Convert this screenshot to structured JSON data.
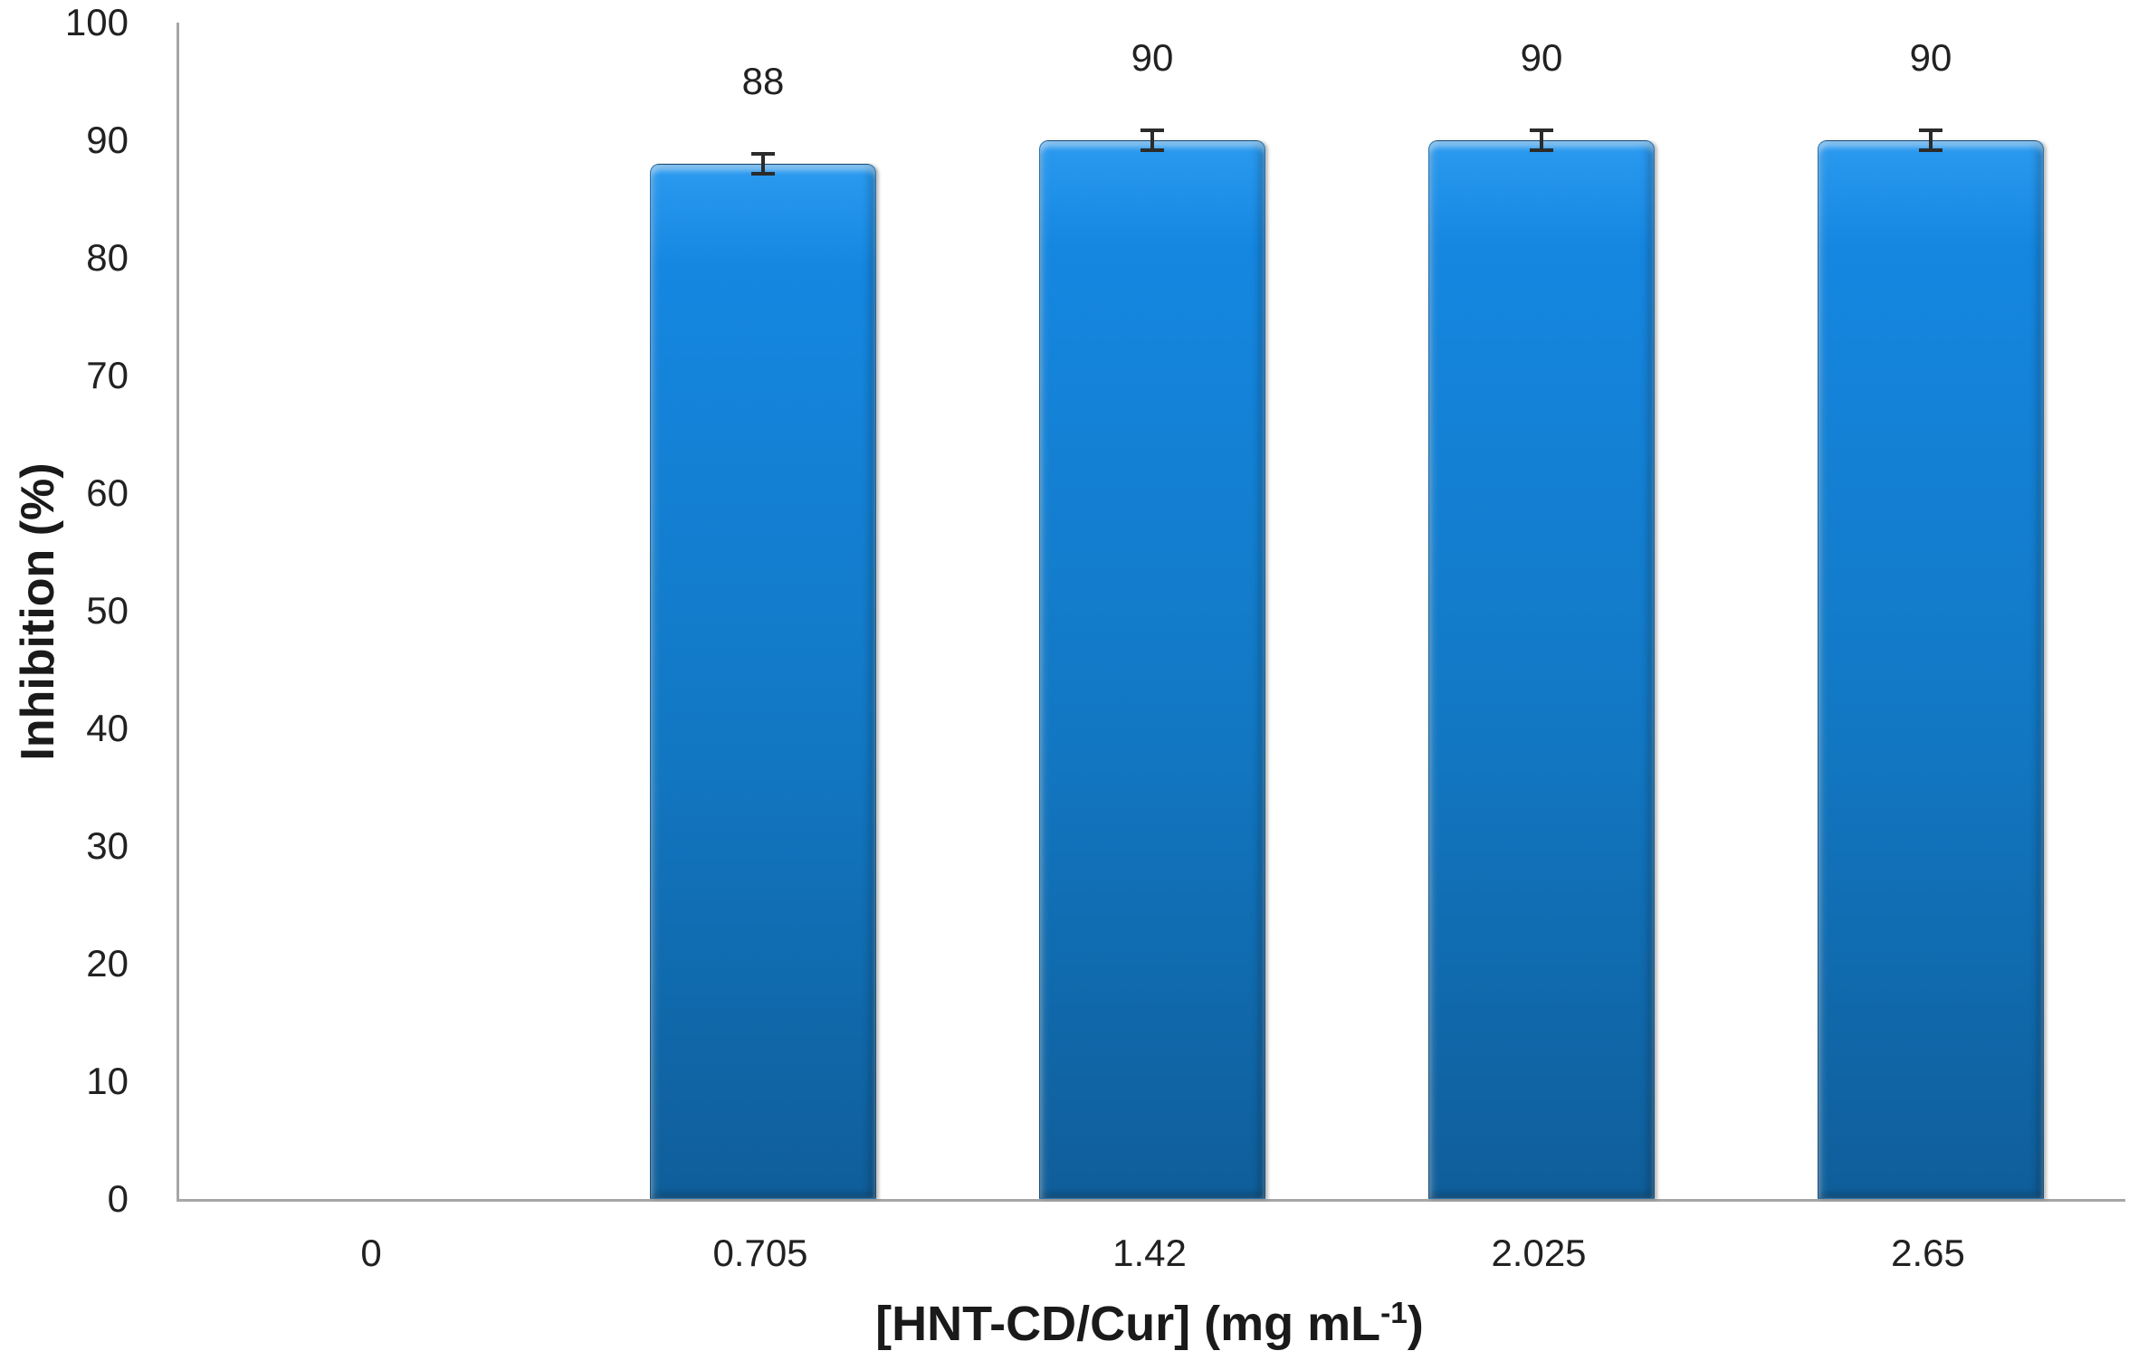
{
  "figure": {
    "background": "#ffffff",
    "axis_line_color": "#a6a6a6",
    "text_color": "#212121",
    "bar_color_top": "#1587e1",
    "bar_color_bottom": "#0f5e9a",
    "error_bar_color": "#2b2b2b"
  },
  "chart_data": {
    "type": "bar",
    "title": "",
    "xlabel": "[HNT-CD/Cur] (mg mL⁻¹)",
    "xlabel_parts": {
      "main": "[HNT-CD/Cur] (mg mL",
      "sup": "-1",
      "end": ")"
    },
    "ylabel": "Inhibition (%)",
    "categories": [
      "0",
      "0.705",
      "1.42",
      "2.025",
      "2.65"
    ],
    "values": [
      0,
      88,
      90,
      90,
      90
    ],
    "data_labels": [
      "",
      "88",
      "90",
      "90",
      "90"
    ],
    "errors": [
      0,
      1,
      1,
      1,
      1
    ],
    "ylim": [
      0,
      100
    ],
    "yticks": [
      0,
      10,
      20,
      30,
      40,
      50,
      60,
      70,
      80,
      90,
      100
    ],
    "grid": false,
    "legend": null
  }
}
